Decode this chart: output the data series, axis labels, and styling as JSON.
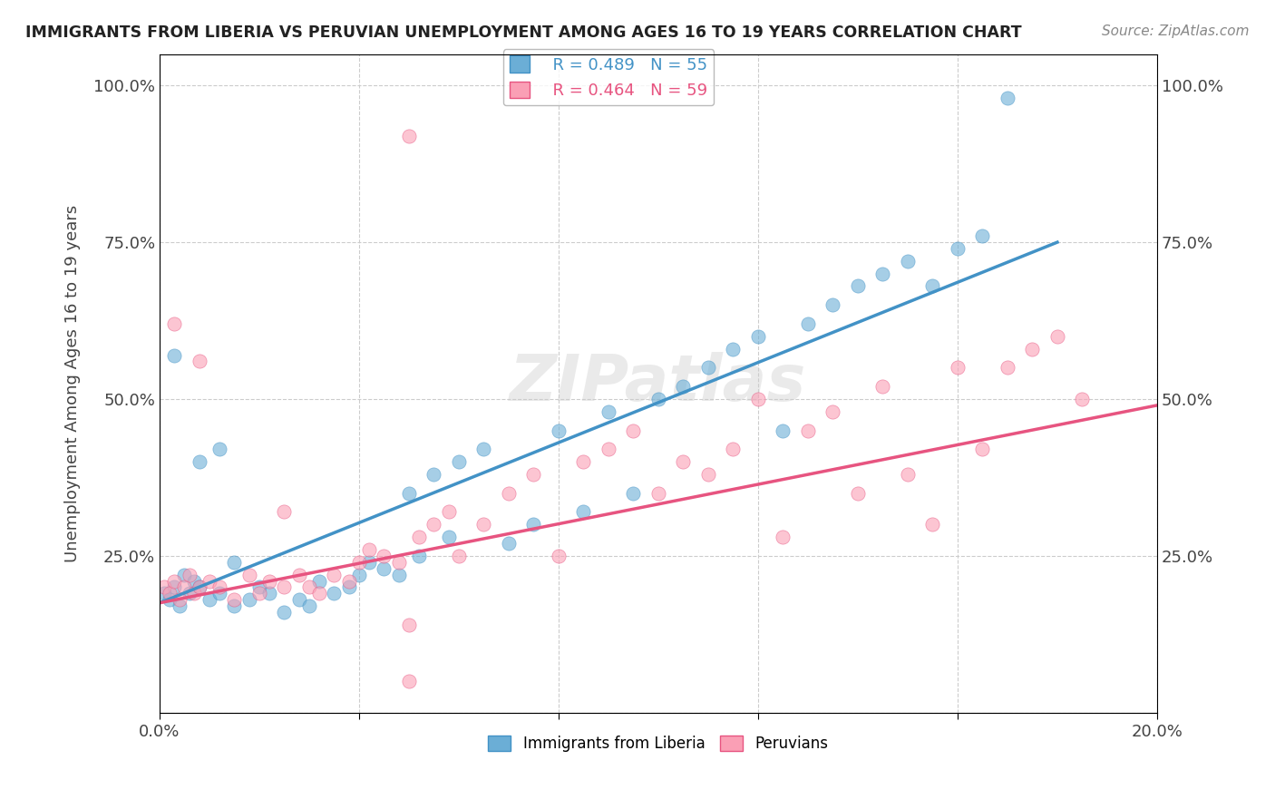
{
  "title": "IMMIGRANTS FROM LIBERIA VS PERUVIAN UNEMPLOYMENT AMONG AGES 16 TO 19 YEARS CORRELATION CHART",
  "source": "Source: ZipAtlas.com",
  "xlabel": "",
  "ylabel": "Unemployment Among Ages 16 to 19 years",
  "xlim": [
    0.0,
    0.2
  ],
  "ylim": [
    0.0,
    1.05
  ],
  "yticks": [
    0.0,
    0.25,
    0.5,
    0.75,
    1.0
  ],
  "ytick_labels": [
    "",
    "25.0%",
    "50.0%",
    "75.0%",
    "100.0%"
  ],
  "xticks": [
    0.0,
    0.04,
    0.08,
    0.12,
    0.16,
    0.2
  ],
  "xtick_labels": [
    "0.0%",
    "",
    "",
    "",
    "",
    "20.0%"
  ],
  "legend_r1": "R = 0.489   N = 55",
  "legend_r2": "R = 0.464   N = 59",
  "color_blue": "#6baed6",
  "color_pink": "#fa9fb5",
  "line_blue": "#4292c6",
  "line_pink": "#e75480",
  "watermark": "ZIPatlas",
  "blue_scatter": [
    [
      0.001,
      0.19
    ],
    [
      0.002,
      0.18
    ],
    [
      0.003,
      0.2
    ],
    [
      0.004,
      0.17
    ],
    [
      0.005,
      0.22
    ],
    [
      0.006,
      0.19
    ],
    [
      0.007,
      0.21
    ],
    [
      0.008,
      0.2
    ],
    [
      0.01,
      0.18
    ],
    [
      0.012,
      0.19
    ],
    [
      0.015,
      0.17
    ],
    [
      0.018,
      0.18
    ],
    [
      0.02,
      0.2
    ],
    [
      0.022,
      0.19
    ],
    [
      0.025,
      0.16
    ],
    [
      0.028,
      0.18
    ],
    [
      0.03,
      0.17
    ],
    [
      0.032,
      0.21
    ],
    [
      0.035,
      0.19
    ],
    [
      0.038,
      0.2
    ],
    [
      0.04,
      0.22
    ],
    [
      0.042,
      0.24
    ],
    [
      0.045,
      0.23
    ],
    [
      0.048,
      0.22
    ],
    [
      0.05,
      0.35
    ],
    [
      0.052,
      0.25
    ],
    [
      0.055,
      0.38
    ],
    [
      0.058,
      0.28
    ],
    [
      0.06,
      0.4
    ],
    [
      0.065,
      0.42
    ],
    [
      0.07,
      0.27
    ],
    [
      0.075,
      0.3
    ],
    [
      0.08,
      0.45
    ],
    [
      0.085,
      0.32
    ],
    [
      0.09,
      0.48
    ],
    [
      0.095,
      0.35
    ],
    [
      0.1,
      0.5
    ],
    [
      0.105,
      0.52
    ],
    [
      0.11,
      0.55
    ],
    [
      0.115,
      0.58
    ],
    [
      0.12,
      0.6
    ],
    [
      0.125,
      0.45
    ],
    [
      0.13,
      0.62
    ],
    [
      0.135,
      0.65
    ],
    [
      0.14,
      0.68
    ],
    [
      0.145,
      0.7
    ],
    [
      0.15,
      0.72
    ],
    [
      0.155,
      0.68
    ],
    [
      0.16,
      0.74
    ],
    [
      0.165,
      0.76
    ],
    [
      0.003,
      0.57
    ],
    [
      0.008,
      0.4
    ],
    [
      0.012,
      0.42
    ],
    [
      0.17,
      0.98
    ],
    [
      0.015,
      0.24
    ]
  ],
  "pink_scatter": [
    [
      0.001,
      0.2
    ],
    [
      0.002,
      0.19
    ],
    [
      0.003,
      0.21
    ],
    [
      0.004,
      0.18
    ],
    [
      0.005,
      0.2
    ],
    [
      0.006,
      0.22
    ],
    [
      0.007,
      0.19
    ],
    [
      0.008,
      0.2
    ],
    [
      0.01,
      0.21
    ],
    [
      0.012,
      0.2
    ],
    [
      0.015,
      0.18
    ],
    [
      0.018,
      0.22
    ],
    [
      0.02,
      0.19
    ],
    [
      0.022,
      0.21
    ],
    [
      0.025,
      0.2
    ],
    [
      0.028,
      0.22
    ],
    [
      0.03,
      0.2
    ],
    [
      0.032,
      0.19
    ],
    [
      0.035,
      0.22
    ],
    [
      0.038,
      0.21
    ],
    [
      0.04,
      0.24
    ],
    [
      0.042,
      0.26
    ],
    [
      0.045,
      0.25
    ],
    [
      0.048,
      0.24
    ],
    [
      0.05,
      0.14
    ],
    [
      0.052,
      0.28
    ],
    [
      0.055,
      0.3
    ],
    [
      0.058,
      0.32
    ],
    [
      0.06,
      0.25
    ],
    [
      0.065,
      0.3
    ],
    [
      0.07,
      0.35
    ],
    [
      0.075,
      0.38
    ],
    [
      0.08,
      0.25
    ],
    [
      0.085,
      0.4
    ],
    [
      0.09,
      0.42
    ],
    [
      0.095,
      0.45
    ],
    [
      0.1,
      0.35
    ],
    [
      0.105,
      0.4
    ],
    [
      0.11,
      0.38
    ],
    [
      0.115,
      0.42
    ],
    [
      0.12,
      0.5
    ],
    [
      0.125,
      0.28
    ],
    [
      0.13,
      0.45
    ],
    [
      0.135,
      0.48
    ],
    [
      0.14,
      0.35
    ],
    [
      0.145,
      0.52
    ],
    [
      0.15,
      0.38
    ],
    [
      0.155,
      0.3
    ],
    [
      0.16,
      0.55
    ],
    [
      0.165,
      0.42
    ],
    [
      0.17,
      0.55
    ],
    [
      0.175,
      0.58
    ],
    [
      0.18,
      0.6
    ],
    [
      0.003,
      0.62
    ],
    [
      0.008,
      0.56
    ],
    [
      0.05,
      0.92
    ],
    [
      0.185,
      0.5
    ],
    [
      0.05,
      0.05
    ],
    [
      0.025,
      0.32
    ]
  ]
}
